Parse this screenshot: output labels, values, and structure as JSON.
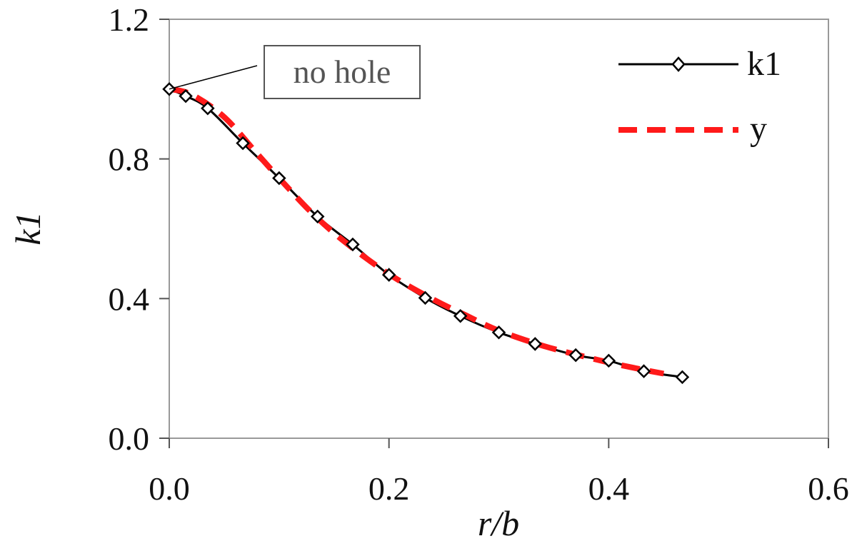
{
  "chart_data": {
    "type": "line",
    "xlabel": "r/b",
    "ylabel": "k1",
    "xlim": [
      0.0,
      0.6
    ],
    "ylim": [
      0.0,
      1.2
    ],
    "x_ticks": [
      "0.0",
      "0.2",
      "0.4",
      "0.6"
    ],
    "y_ticks": [
      "0.0",
      "0.4",
      "0.8",
      "1.2"
    ],
    "grid": false,
    "legend_position": "top-right",
    "annotation": {
      "text": "no hole",
      "x": 0.0,
      "y": 1.0
    },
    "series": [
      {
        "name": "k1",
        "style": "solid line with diamond markers",
        "color": "#000000",
        "x": [
          0.0,
          0.015,
          0.035,
          0.067,
          0.1,
          0.135,
          0.167,
          0.2,
          0.233,
          0.265,
          0.3,
          0.333,
          0.37,
          0.4,
          0.432,
          0.467
        ],
        "y": [
          1.0,
          0.98,
          0.945,
          0.845,
          0.745,
          0.635,
          0.555,
          0.468,
          0.402,
          0.35,
          0.303,
          0.27,
          0.238,
          0.222,
          0.192,
          0.175
        ]
      },
      {
        "name": "y",
        "style": "dashed line",
        "color": "#ff1a1a",
        "x": [
          0.0,
          0.02,
          0.05,
          0.08,
          0.1,
          0.13,
          0.16,
          0.2,
          0.24,
          0.27,
          0.3,
          0.34,
          0.37,
          0.4,
          0.43,
          0.45
        ],
        "y": [
          1.0,
          0.985,
          0.92,
          0.815,
          0.745,
          0.645,
          0.562,
          0.47,
          0.398,
          0.352,
          0.308,
          0.265,
          0.24,
          0.217,
          0.197,
          0.185
        ]
      }
    ]
  }
}
